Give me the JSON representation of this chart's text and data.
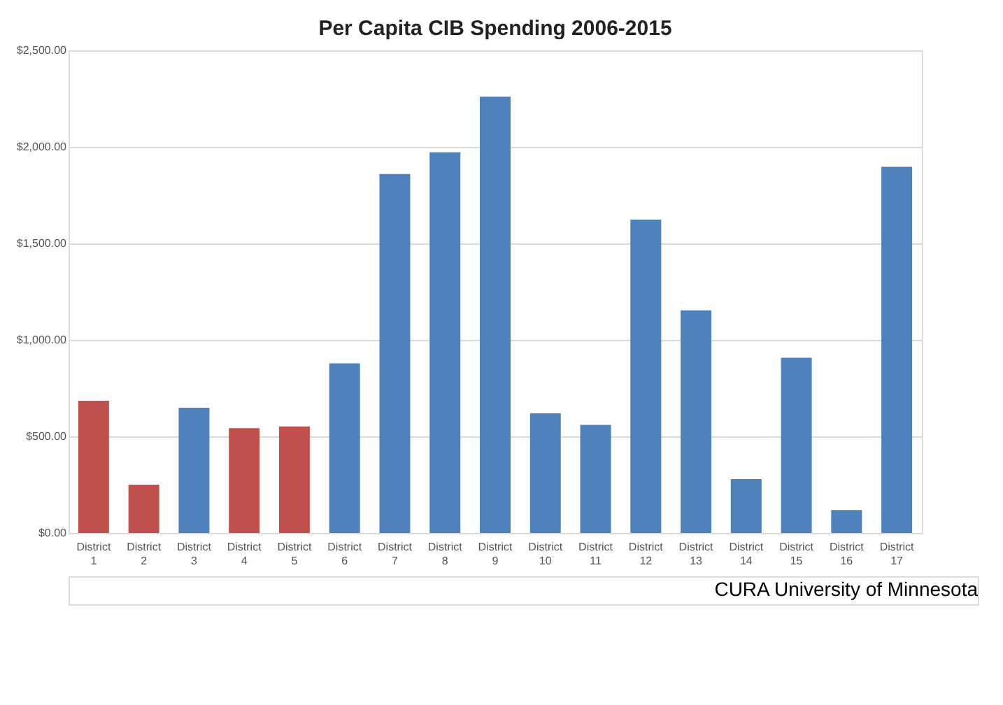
{
  "chart_data": {
    "type": "bar",
    "title": "Per Capita CIB Spending 2006-2015",
    "categories": [
      "District 1",
      "District 2",
      "District 3",
      "District 4",
      "District 5",
      "District 6",
      "District 7",
      "District 8",
      "District 9",
      "District 10",
      "District 11",
      "District 12",
      "District 13",
      "District 14",
      "District 15",
      "District 16",
      "District 17"
    ],
    "values": [
      685,
      250,
      649,
      543,
      552,
      879,
      1860,
      1972,
      2260,
      620,
      560,
      1623,
      1153,
      279,
      908,
      119,
      1897
    ],
    "colors": [
      "#c0504d",
      "#c0504d",
      "#4f81bd",
      "#c0504d",
      "#c0504d",
      "#4f81bd",
      "#4f81bd",
      "#4f81bd",
      "#4f81bd",
      "#4f81bd",
      "#4f81bd",
      "#4f81bd",
      "#4f81bd",
      "#4f81bd",
      "#4f81bd",
      "#4f81bd",
      "#4f81bd"
    ],
    "ylim": [
      0,
      2500
    ],
    "yticks": [
      {
        "value": 0,
        "label": "$0.00"
      },
      {
        "value": 500,
        "label": "$500.00"
      },
      {
        "value": 1000,
        "label": "$1,000.00"
      },
      {
        "value": 1500,
        "label": "$1,500.00"
      },
      {
        "value": 2000,
        "label": "$2,000.00"
      },
      {
        "value": 2500,
        "label": "$2,500.00"
      }
    ],
    "grid": "y",
    "legend": false,
    "annotations": [
      "CURA University of Minnesota"
    ]
  }
}
